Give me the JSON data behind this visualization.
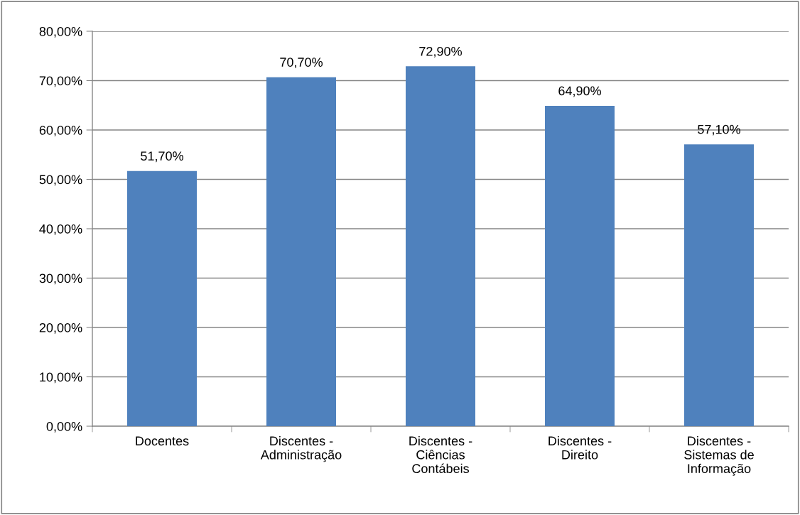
{
  "chart_data": {
    "type": "bar",
    "categories": [
      "Docentes",
      "Discentes -\nAdministração",
      "Discentes -\nCiências\nContábeis",
      "Discentes -\nDireito",
      "Discentes -\nSistemas de\nInformação"
    ],
    "values": [
      51.7,
      70.7,
      72.9,
      64.9,
      57.1
    ],
    "value_labels": [
      "51,70%",
      "70,70%",
      "72,90%",
      "64,90%",
      "57,10%"
    ],
    "color": "#4f81bd",
    "ylim": [
      0,
      80
    ],
    "yticks": [
      {
        "value": 0,
        "label": "0,00%"
      },
      {
        "value": 10,
        "label": "10,00%"
      },
      {
        "value": 20,
        "label": "20,00%"
      },
      {
        "value": 30,
        "label": "30,00%"
      },
      {
        "value": 40,
        "label": "40,00%"
      },
      {
        "value": 50,
        "label": "50,00%"
      },
      {
        "value": 60,
        "label": "60,00%"
      },
      {
        "value": 70,
        "label": "70,00%"
      },
      {
        "value": 80,
        "label": "80,00%"
      }
    ],
    "grid": "y",
    "legend": false
  }
}
